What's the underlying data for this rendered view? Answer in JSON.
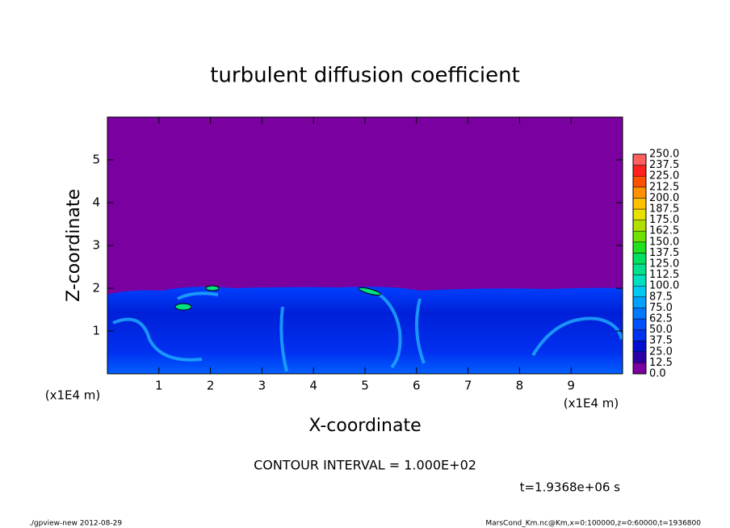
{
  "chart_data": {
    "type": "contour",
    "title": "turbulent diffusion coefficient",
    "x_label": "X-coordinate",
    "y_label": "Z-coordinate",
    "x_unit": "(x1E4 m)",
    "y_unit": "(x1E4 m)",
    "xlim": [
      0,
      10
    ],
    "ylim": [
      0,
      6
    ],
    "xticks": [
      1,
      2,
      3,
      4,
      5,
      6,
      7,
      8,
      9
    ],
    "yticks": [
      1,
      2,
      3,
      4,
      5
    ],
    "colorbar": {
      "levels": [
        {
          "value": 0,
          "label": "0.0"
        },
        12.5,
        {
          "value": 25,
          "label": "25.0"
        },
        37.5,
        {
          "value": 50,
          "label": "50.0"
        },
        62.5,
        {
          "value": 75,
          "label": "75.0"
        },
        87.5,
        {
          "value": 100,
          "label": "100.0"
        },
        112.5,
        {
          "value": 125,
          "label": "125.0"
        },
        137.5,
        {
          "value": 150,
          "label": "150.0"
        },
        162.5,
        {
          "value": 175,
          "label": "175.0"
        },
        187.5,
        {
          "value": 200,
          "label": "200.0"
        },
        212.5,
        {
          "value": 225,
          "label": "225.0"
        },
        237.5,
        {
          "value": 250,
          "label": "250.0"
        }
      ],
      "colors": [
        "#7a00a0",
        "#2a00a8",
        "#0010d0",
        "#0030f0",
        "#0050ff",
        "#0078ff",
        "#00a0ff",
        "#00c8f0",
        "#00e0c0",
        "#00e090",
        "#00e060",
        "#20e020",
        "#70e000",
        "#b0e000",
        "#e8e000",
        "#ffc000",
        "#ff9000",
        "#ff5000",
        "#ff2020",
        "#ff6060"
      ]
    },
    "contour_interval": "CONTOUR INTERVAL = 1.000E+02",
    "time_label": "t=1.9368e+06 s",
    "footer_left": "./gpview-new  2012-08-29",
    "footer_right": "MarsCond_Km.nc@Km,x=0:100000,z=0:60000,t=1936800"
  }
}
